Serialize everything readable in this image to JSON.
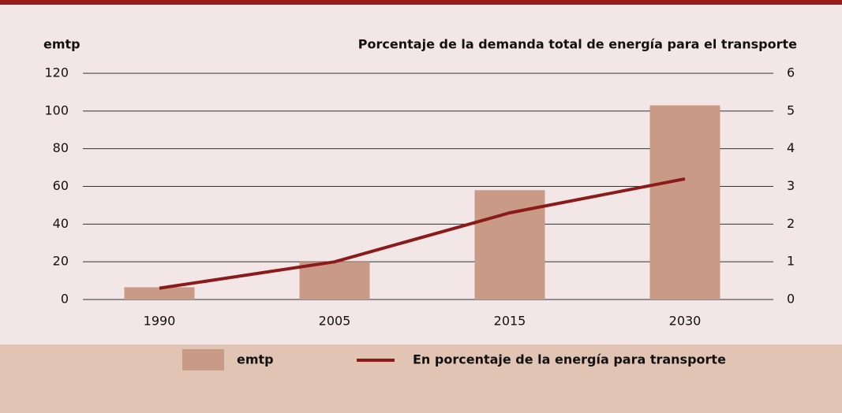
{
  "chart_data": {
    "type": "bar",
    "ylabel": "emtp",
    "y2label": "Porcentaje de la demanda total de energía para el transporte",
    "categories": [
      "1990",
      "2005",
      "2015",
      "2030"
    ],
    "series": [
      {
        "name": "emtp",
        "color": "#c99a85",
        "type": "bar",
        "values": [
          6.5,
          20,
          58,
          103
        ]
      },
      {
        "name": "En porcentaje de la energía para transporte",
        "color": "#8b1a1a",
        "type": "line",
        "axis": "y2",
        "values": [
          0.3,
          1.0,
          2.3,
          3.2
        ]
      }
    ],
    "ylim": [
      0,
      120
    ],
    "yticks": [
      0,
      20,
      40,
      60,
      80,
      100,
      120
    ],
    "y2lim": [
      0,
      6
    ],
    "y2ticks": [
      0,
      1,
      2,
      3,
      4,
      5,
      6
    ],
    "grid": true
  }
}
